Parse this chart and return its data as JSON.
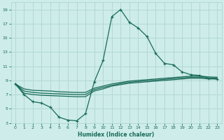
{
  "xlabel": "Humidex (Indice chaleur)",
  "bg_color": "#cdecea",
  "grid_color": "#aed6d2",
  "line_color": "#1a6b5a",
  "xlim": [
    -0.5,
    23.5
  ],
  "ylim": [
    3,
    20
  ],
  "xticks": [
    0,
    1,
    2,
    3,
    4,
    5,
    6,
    7,
    8,
    9,
    10,
    11,
    12,
    13,
    14,
    15,
    16,
    17,
    18,
    19,
    20,
    21,
    22,
    23
  ],
  "yticks": [
    3,
    5,
    7,
    9,
    11,
    13,
    15,
    17,
    19
  ],
  "curve1_x": [
    0,
    1,
    2,
    3,
    4,
    5,
    6,
    7,
    8,
    9,
    10,
    11,
    12,
    13,
    14,
    15,
    16,
    17,
    18,
    19,
    20,
    21,
    22,
    23
  ],
  "curve1_y": [
    8.5,
    7.0,
    6.0,
    5.8,
    5.2,
    3.8,
    3.4,
    3.3,
    4.3,
    8.8,
    11.8,
    18.0,
    19.0,
    17.2,
    16.4,
    15.2,
    12.8,
    11.4,
    11.2,
    10.2,
    9.8,
    9.7,
    9.3,
    9.2
  ],
  "curve2_x": [
    0,
    1,
    2,
    3,
    4,
    5,
    6,
    7,
    8,
    9,
    10,
    11,
    12,
    13,
    14,
    15,
    16,
    17,
    18,
    19,
    20,
    21,
    22,
    23
  ],
  "curve2_y": [
    8.5,
    7.2,
    7.0,
    6.9,
    6.85,
    6.8,
    6.75,
    6.7,
    6.7,
    7.5,
    7.8,
    8.2,
    8.4,
    8.6,
    8.7,
    8.8,
    8.9,
    9.0,
    9.1,
    9.2,
    9.3,
    9.3,
    9.2,
    9.2
  ],
  "curve3_x": [
    0,
    1,
    2,
    3,
    4,
    5,
    6,
    7,
    8,
    9,
    10,
    11,
    12,
    13,
    14,
    15,
    16,
    17,
    18,
    19,
    20,
    21,
    22,
    23
  ],
  "curve3_y": [
    8.5,
    7.5,
    7.3,
    7.2,
    7.15,
    7.1,
    7.05,
    7.0,
    7.0,
    7.7,
    8.0,
    8.3,
    8.55,
    8.75,
    8.85,
    8.95,
    9.05,
    9.15,
    9.25,
    9.35,
    9.45,
    9.45,
    9.35,
    9.3
  ],
  "curve4_x": [
    0,
    1,
    2,
    3,
    4,
    5,
    6,
    7,
    8,
    9,
    10,
    11,
    12,
    13,
    14,
    15,
    16,
    17,
    18,
    19,
    20,
    21,
    22,
    23
  ],
  "curve4_y": [
    8.5,
    7.8,
    7.6,
    7.55,
    7.5,
    7.4,
    7.35,
    7.3,
    7.3,
    7.9,
    8.2,
    8.5,
    8.7,
    8.9,
    9.0,
    9.1,
    9.2,
    9.3,
    9.4,
    9.5,
    9.6,
    9.6,
    9.5,
    9.45
  ]
}
